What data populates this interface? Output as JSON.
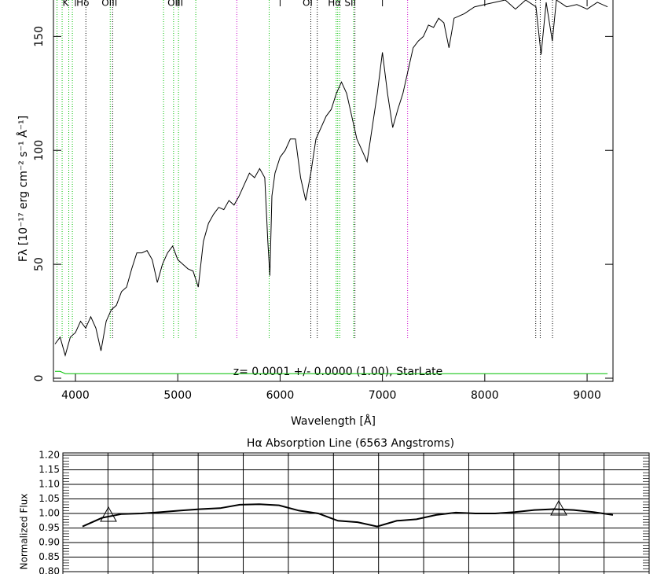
{
  "chart_data": [
    {
      "type": "line",
      "xlabel": "Wavelength [Å]",
      "ylabel": "Fλ [10⁻¹⁷ erg cm⁻² s⁻¹ Å⁻¹]",
      "annotation": "z= 0.0001 +/- 0.0000 (1.00), StarLate",
      "xlim": [
        3785,
        9253
      ],
      "ylim": [
        0,
        166
      ],
      "xticks": [
        4000,
        5000,
        6000,
        7000,
        8000,
        9000
      ],
      "yticks": [
        0,
        50,
        100,
        150
      ],
      "x": [
        3800,
        3850,
        3900,
        3950,
        4000,
        4050,
        4100,
        4150,
        4200,
        4250,
        4300,
        4350,
        4400,
        4450,
        4500,
        4550,
        4600,
        4650,
        4700,
        4750,
        4800,
        4850,
        4900,
        4950,
        5000,
        5050,
        5100,
        5150,
        5200,
        5250,
        5300,
        5350,
        5400,
        5450,
        5500,
        5550,
        5600,
        5650,
        5700,
        5750,
        5800,
        5850,
        5880,
        5900,
        5920,
        5950,
        6000,
        6050,
        6100,
        6150,
        6200,
        6250,
        6300,
        6350,
        6400,
        6450,
        6500,
        6550,
        6600,
        6650,
        6700,
        6750,
        6800,
        6850,
        6900,
        6950,
        7000,
        7050,
        7100,
        7150,
        7200,
        7250,
        7300,
        7350,
        7400,
        7450,
        7500,
        7550,
        7600,
        7650,
        7700,
        7800,
        7900,
        8000,
        8100,
        8200,
        8300,
        8400,
        8500,
        8550,
        8600,
        8660,
        8700,
        8800,
        8900,
        9000,
        9100,
        9200
      ],
      "series": [
        {
          "color": "#000000",
          "values": [
            15,
            18,
            10,
            18,
            20,
            25,
            22,
            27,
            22,
            12,
            25,
            30,
            32,
            38,
            40,
            48,
            55,
            55,
            56,
            52,
            42,
            50,
            55,
            58,
            52,
            50,
            48,
            47,
            40,
            60,
            68,
            72,
            75,
            74,
            78,
            76,
            80,
            85,
            90,
            88,
            92,
            88,
            60,
            45,
            80,
            90,
            97,
            100,
            105,
            105,
            88,
            78,
            90,
            105,
            110,
            115,
            118,
            125,
            130,
            125,
            115,
            105,
            100,
            95,
            110,
            125,
            143,
            125,
            110,
            118,
            125,
            135,
            145,
            148,
            150,
            155,
            154,
            158,
            156,
            145,
            158,
            160,
            163,
            164,
            165,
            166,
            162,
            166,
            163,
            142,
            165,
            148,
            166,
            163,
            164,
            162,
            165,
            163
          ]
        },
        {
          "color": "#00c000",
          "values": [
            3,
            3,
            2,
            2,
            2,
            2,
            2,
            2,
            2,
            2,
            2,
            2,
            2,
            2,
            2,
            2,
            2,
            2,
            2,
            2,
            2,
            2,
            2,
            2,
            2,
            2,
            2,
            2,
            2,
            2,
            2,
            2,
            2,
            2,
            2,
            2,
            2,
            2,
            2,
            2,
            2,
            2,
            2,
            2,
            2,
            2,
            2,
            2,
            2,
            2,
            2,
            2,
            2,
            2,
            2,
            2,
            2,
            2,
            2,
            2,
            2,
            2,
            2,
            2,
            2,
            2,
            2,
            2,
            2,
            2,
            2,
            2,
            2,
            2,
            2,
            2,
            2,
            2,
            2,
            2,
            2,
            2,
            2,
            2,
            2,
            2,
            2,
            2,
            2,
            2,
            2,
            2,
            2,
            2,
            2,
            2,
            2,
            2
          ]
        }
      ],
      "vlines": [
        {
          "x": 3820,
          "color": "#00c000"
        },
        {
          "x": 3870,
          "color": "#00c000"
        },
        {
          "x": 3935,
          "color": "#00c000"
        },
        {
          "x": 3970,
          "color": "#00c000"
        },
        {
          "x": 4102,
          "color": "#000000"
        },
        {
          "x": 4340,
          "color": "#00c000"
        },
        {
          "x": 4363,
          "color": "#000000"
        },
        {
          "x": 4861,
          "color": "#00c000"
        },
        {
          "x": 4959,
          "color": "#00c000"
        },
        {
          "x": 5007,
          "color": "#00c000"
        },
        {
          "x": 5176,
          "color": "#00c000"
        },
        {
          "x": 5577,
          "color": "#cc00cc"
        },
        {
          "x": 5893,
          "color": "#00c000"
        },
        {
          "x": 6300,
          "color": "#000000"
        },
        {
          "x": 6363,
          "color": "#000000"
        },
        {
          "x": 6548,
          "color": "#00c000"
        },
        {
          "x": 6563,
          "color": "#00c000"
        },
        {
          "x": 6583,
          "color": "#00c000"
        },
        {
          "x": 6717,
          "color": "#00c000"
        },
        {
          "x": 6731,
          "color": "#000000"
        },
        {
          "x": 7246,
          "color": "#cc00cc"
        },
        {
          "x": 8498,
          "color": "#000000"
        },
        {
          "x": 8542,
          "color": "#000000"
        },
        {
          "x": 8662,
          "color": "#000000"
        }
      ],
      "line_labels": [
        {
          "text": "K",
          "x": 3934
        },
        {
          "text": "Hδ",
          "x": 4102
        },
        {
          "text": "OIII",
          "x": 4363
        },
        {
          "text": "OIII",
          "x": 5007
        },
        {
          "text": "OI",
          "x": 6300
        },
        {
          "text": "Hα",
          "x": 6563
        },
        {
          "text": "SII",
          "x": 6717
        }
      ]
    },
    {
      "type": "line",
      "title": "Hα Absorption Line (6563 Angstroms)",
      "ylabel": "Normalized Flux",
      "ylim": [
        0.8,
        1.2
      ],
      "yticks": [
        {
          "value": 1.2,
          "label": "1.20"
        },
        {
          "value": 1.15,
          "label": "1.15"
        },
        {
          "value": 1.1,
          "label": "1.10"
        },
        {
          "value": 1.05,
          "label": "1.05"
        },
        {
          "value": 1.0,
          "label": "1.00"
        },
        {
          "value": 0.95,
          "label": "0.95"
        },
        {
          "value": 0.9,
          "label": "0.90"
        },
        {
          "value": 0.85,
          "label": "0.85"
        },
        {
          "value": 0.8,
          "label": "0.80"
        }
      ],
      "color": "#000000",
      "values": [
        0.955,
        0.985,
        0.998,
        1.0,
        1.005,
        1.01,
        1.015,
        1.018,
        1.03,
        1.032,
        1.028,
        1.01,
        1.0,
        0.975,
        0.97,
        0.955,
        0.975,
        0.98,
        0.995,
        1.003,
        1.0,
        1.0,
        1.005,
        1.012,
        1.015,
        1.012,
        1.005,
        0.995
      ]
    }
  ]
}
